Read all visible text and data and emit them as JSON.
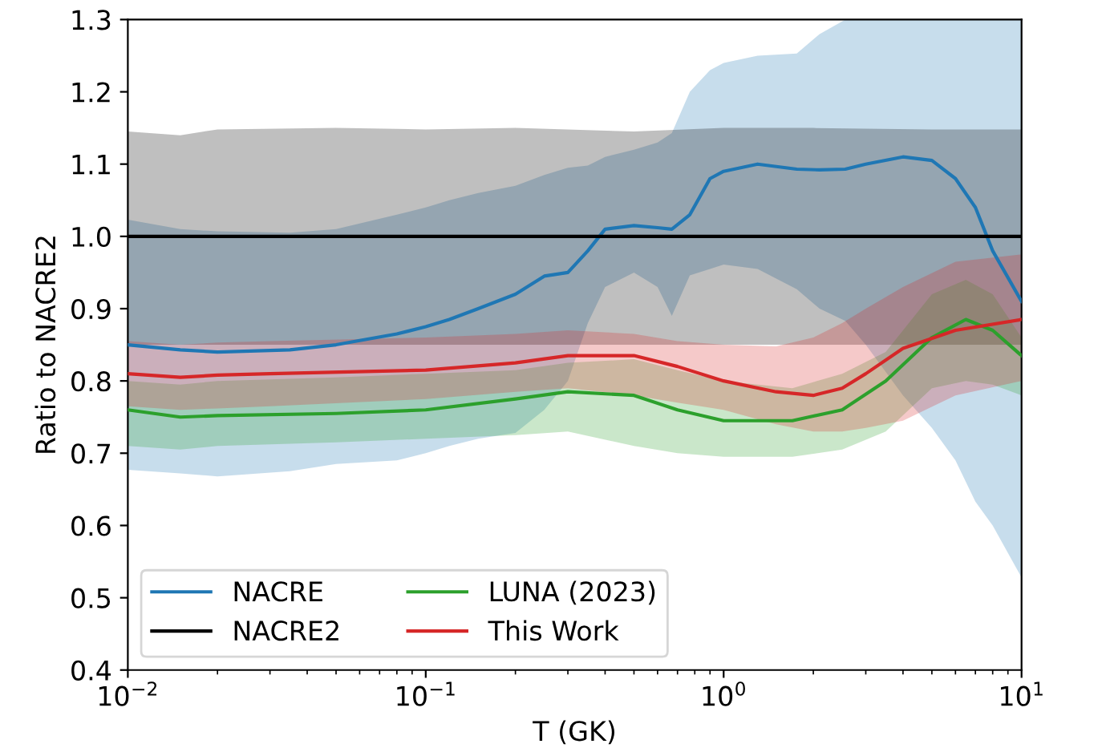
{
  "chart_data": {
    "type": "line",
    "xlabel": "T (GK)",
    "ylabel": "Ratio to NACRE2",
    "log": "x",
    "xlim": [
      0.01,
      10
    ],
    "ylim": [
      0.4,
      1.3
    ],
    "xticks": [
      {
        "value": 0.01,
        "label": "10$^{−2}$"
      },
      {
        "value": 0.1,
        "label": "10$^{−1}$"
      },
      {
        "value": 1,
        "label": "10$^{0}$"
      },
      {
        "value": 10,
        "label": "10$^{1}$"
      }
    ],
    "yticks": [
      0.4,
      0.5,
      0.6,
      0.7,
      0.8,
      0.9,
      {
        "value": 1,
        "label": "1.0"
      },
      1.1,
      1.2,
      1.3
    ],
    "legend": "bottom left",
    "grid": false,
    "line_style": "solid",
    "marker": "none",
    "series": [
      {
        "name": "NACRE",
        "color": "#1f77b4",
        "x": [
          0.01,
          0.015,
          0.02,
          0.035,
          0.05,
          0.08,
          0.1,
          0.12,
          0.15,
          0.2,
          0.25,
          0.3,
          0.35,
          0.4,
          0.5,
          0.6,
          0.67,
          0.77,
          0.9,
          1.0,
          1.3,
          1.76,
          2.1,
          2.56,
          3,
          4,
          5,
          6,
          7,
          8,
          10
        ],
        "values": [
          0.85,
          0.843,
          0.84,
          0.843,
          0.85,
          0.865,
          0.875,
          0.885,
          0.9,
          0.92,
          0.945,
          0.95,
          0.98,
          1.01,
          1.015,
          1.012,
          1.01,
          1.03,
          1.08,
          1.09,
          1.1,
          1.093,
          1.092,
          1.093,
          1.1,
          1.11,
          1.105,
          1.08,
          1.04,
          0.98,
          0.91
        ],
        "lower": [
          0.677,
          0.672,
          0.668,
          0.675,
          0.685,
          0.69,
          0.7,
          0.71,
          0.72,
          0.728,
          0.76,
          0.8,
          0.88,
          0.93,
          0.95,
          0.93,
          0.89,
          0.946,
          0.955,
          0.961,
          0.955,
          0.927,
          0.9,
          0.883,
          0.85,
          0.78,
          0.735,
          0.69,
          0.633,
          0.6,
          0.528
        ],
        "upper": [
          1.023,
          1.01,
          1.007,
          1.005,
          1.01,
          1.03,
          1.04,
          1.05,
          1.06,
          1.07,
          1.085,
          1.095,
          1.098,
          1.11,
          1.12,
          1.13,
          1.143,
          1.2,
          1.23,
          1.24,
          1.25,
          1.253,
          1.28,
          1.3,
          1.3,
          1.3,
          1.3,
          1.3,
          1.3,
          1.3,
          1.3
        ]
      },
      {
        "name": "NACRE2",
        "color": "#000000",
        "x": [
          0.01,
          0.015,
          0.02,
          0.05,
          0.1,
          0.2,
          0.5,
          1,
          2,
          5,
          10
        ],
        "values": [
          1.0,
          1.0,
          1.0,
          1.0,
          1.0,
          1.0,
          1.0,
          1.0,
          1.0,
          1.0,
          1.0
        ],
        "lower": [
          0.85,
          0.85,
          0.85,
          0.85,
          0.85,
          0.85,
          0.85,
          0.85,
          0.85,
          0.85,
          0.85
        ],
        "upper": [
          1.145,
          1.14,
          1.148,
          1.15,
          1.148,
          1.15,
          1.145,
          1.15,
          1.15,
          1.148,
          1.148
        ]
      },
      {
        "name": "LUNA (2023)",
        "color": "#2ca02c",
        "x": [
          0.01,
          0.015,
          0.02,
          0.05,
          0.1,
          0.2,
          0.3,
          0.5,
          0.7,
          1,
          1.7,
          2.5,
          3.5,
          5,
          6.5,
          8,
          10
        ],
        "values": [
          0.76,
          0.75,
          0.752,
          0.755,
          0.76,
          0.775,
          0.785,
          0.78,
          0.76,
          0.745,
          0.745,
          0.76,
          0.8,
          0.86,
          0.885,
          0.87,
          0.835
        ],
        "lower": [
          0.71,
          0.705,
          0.71,
          0.715,
          0.72,
          0.725,
          0.73,
          0.71,
          0.7,
          0.695,
          0.695,
          0.705,
          0.73,
          0.79,
          0.8,
          0.795,
          0.78
        ],
        "upper": [
          0.8,
          0.795,
          0.8,
          0.805,
          0.81,
          0.815,
          0.825,
          0.83,
          0.815,
          0.8,
          0.79,
          0.81,
          0.84,
          0.92,
          0.94,
          0.92,
          0.86
        ]
      },
      {
        "name": "This Work",
        "color": "#d62728",
        "x": [
          0.01,
          0.015,
          0.02,
          0.03,
          0.1,
          0.2,
          0.3,
          0.5,
          0.7,
          1,
          1.5,
          2,
          2.5,
          3,
          4,
          6,
          10
        ],
        "values": [
          0.81,
          0.805,
          0.808,
          0.81,
          0.815,
          0.825,
          0.835,
          0.835,
          0.82,
          0.8,
          0.785,
          0.78,
          0.79,
          0.81,
          0.845,
          0.87,
          0.885
        ],
        "lower": [
          0.765,
          0.76,
          0.762,
          0.765,
          0.775,
          0.785,
          0.79,
          0.78,
          0.77,
          0.76,
          0.74,
          0.73,
          0.73,
          0.735,
          0.745,
          0.78,
          0.8
        ],
        "upper": [
          0.855,
          0.85,
          0.853,
          0.855,
          0.86,
          0.865,
          0.87,
          0.865,
          0.855,
          0.85,
          0.848,
          0.86,
          0.88,
          0.9,
          0.93,
          0.965,
          0.975
        ]
      }
    ]
  }
}
